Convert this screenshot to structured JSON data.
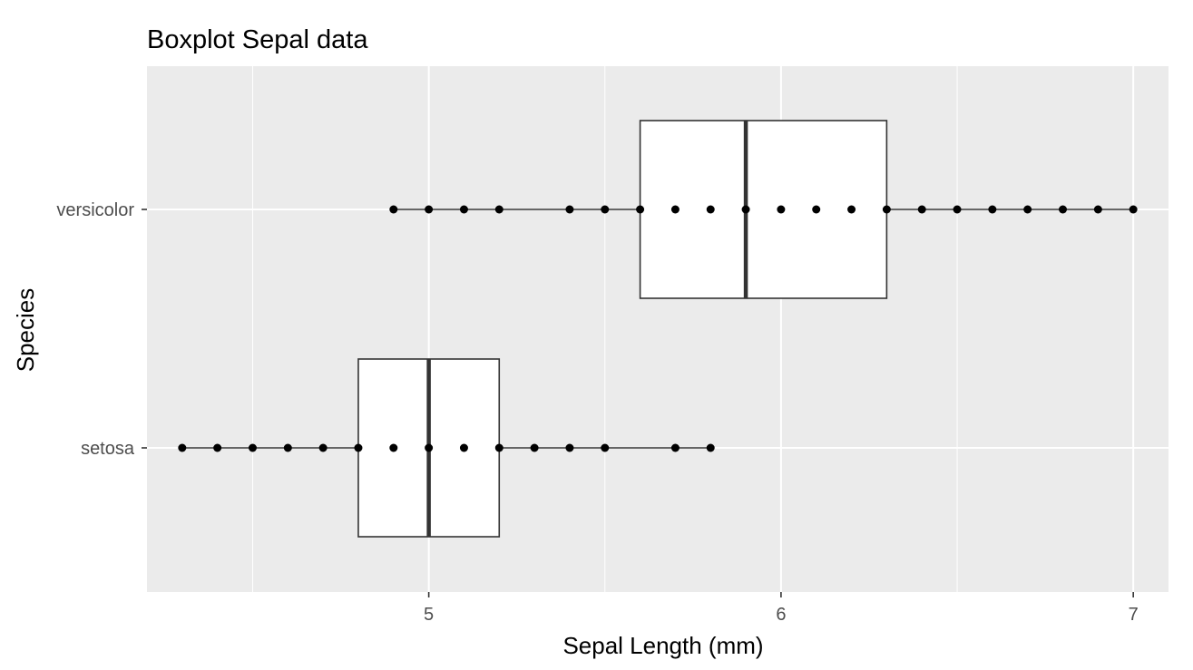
{
  "chart_data": {
    "type": "boxplot",
    "title": "Boxplot Sepal data",
    "xlabel": "Sepal Length (mm)",
    "ylabel": "Species",
    "xlim": [
      4.2,
      7.1
    ],
    "xticks": [
      5,
      6,
      7
    ],
    "xminor": [
      4.5,
      5.5,
      6.5
    ],
    "grid": true,
    "legend": "none",
    "colors": {
      "panel": "#ebebeb",
      "grid": "#ffffff",
      "box_fill": "#ffffff",
      "box_line": "#333333",
      "points": "#000000"
    },
    "categories": [
      "setosa",
      "versicolor"
    ],
    "boxes": [
      {
        "category": "setosa",
        "whisker_low": 4.3,
        "q1": 4.8,
        "median": 5.0,
        "q3": 5.2,
        "whisker_high": 5.8
      },
      {
        "category": "versicolor",
        "whisker_low": 4.9,
        "q1": 5.6,
        "median": 5.9,
        "q3": 6.3,
        "whisker_high": 7.0
      }
    ],
    "points": [
      {
        "category": "setosa",
        "x": [
          4.3,
          4.4,
          4.5,
          4.6,
          4.7,
          4.8,
          4.9,
          5.0,
          5.1,
          5.2,
          5.3,
          5.4,
          5.5,
          5.7,
          5.8
        ]
      },
      {
        "category": "versicolor",
        "x": [
          4.9,
          5.0,
          5.1,
          5.2,
          5.4,
          5.5,
          5.6,
          5.7,
          5.8,
          5.9,
          6.0,
          6.1,
          6.2,
          6.3,
          6.4,
          6.5,
          6.6,
          6.7,
          6.8,
          6.9,
          7.0
        ]
      }
    ]
  }
}
